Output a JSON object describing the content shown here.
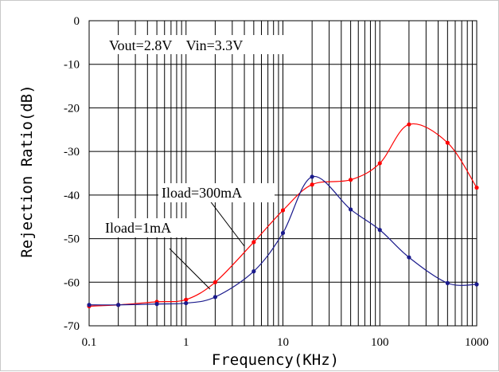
{
  "chart_data": {
    "type": "line",
    "title": "",
    "xlabel": "Frequency(KHz)",
    "ylabel": "Rejection Ratio(dB)",
    "xscale": "log",
    "xlim": [
      0.1,
      1000
    ],
    "ylim": [
      -70,
      0
    ],
    "grid": true,
    "x_tick_labels": [
      "0.1",
      "1",
      "10",
      "100",
      "1000"
    ],
    "y_tick_labels": [
      "0",
      "-10",
      "-20",
      "-30",
      "-40",
      "-50",
      "-60",
      "-70"
    ],
    "series": [
      {
        "name": "Iload=300mA",
        "color": "#ff0000",
        "x": [
          0.1,
          0.2,
          0.5,
          1,
          2,
          5,
          10,
          20,
          50,
          100,
          200,
          500,
          1000
        ],
        "y": [
          -65.5,
          -65.2,
          -64.5,
          -64.0,
          -60.0,
          -50.8,
          -43.5,
          -37.6,
          -36.5,
          -32.7,
          -23.8,
          -28.0,
          -38.3
        ]
      },
      {
        "name": "Iload=1mA",
        "color": "#1a1a8c",
        "x": [
          0.1,
          0.2,
          0.5,
          1,
          2,
          5,
          10,
          20,
          50,
          100,
          200,
          500,
          1000
        ],
        "y": [
          -65.2,
          -65.2,
          -65.0,
          -64.8,
          -63.4,
          -57.5,
          -48.7,
          -35.8,
          -43.3,
          -48.0,
          -54.3,
          -60.2,
          -60.5
        ]
      }
    ],
    "annotations": [
      {
        "text": "Vout=2.8V    Vin=3.3V"
      },
      {
        "text": "Iload=300mA"
      },
      {
        "text": "Iload=1mA"
      }
    ]
  }
}
